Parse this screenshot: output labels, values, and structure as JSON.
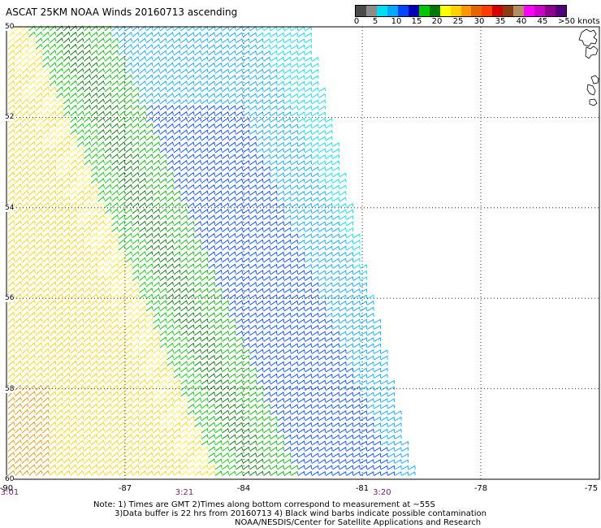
{
  "title": "ASCAT 25KM NOAA Winds 20160713 ascending",
  "colorbar": {
    "colors": [
      "#4a4a4a",
      "#8c8c8c",
      "#00dcf0",
      "#00a8ff",
      "#0046ff",
      "#0000b4",
      "#00c800",
      "#007800",
      "#ffff00",
      "#ffd200",
      "#ff9600",
      "#e66400",
      "#ff3c00",
      "#d20000",
      "#8c3c14",
      "#b48c64",
      "#ff00ff",
      "#c800c8",
      "#8c008c",
      "#500078"
    ],
    "labels": [
      "0",
      "5",
      "10",
      "15",
      "20",
      "25",
      "30",
      "35",
      "40",
      "45",
      ">50 knots"
    ]
  },
  "latitudes": [
    "50",
    "52",
    "54",
    "56",
    "58",
    "60"
  ],
  "longitudes": [
    "-90",
    "-87",
    "-84",
    "-81",
    "-78",
    "-75"
  ],
  "time_labels": [
    {
      "text": "3:01",
      "lon": "-90"
    },
    {
      "text": "3:21",
      "lon": "-85.5"
    },
    {
      "text": "3:20",
      "lon": "-80.5"
    }
  ],
  "notes": [
    "Note: 1) Times are GMT 2)Times along bottom correspond to measurement at ~55S",
    "3)Data buffer is 22 hrs from 20160713 4) Black wind barbs indicate possible contamination",
    "NOAA/NESDIS/Center for Satellite Applications and Research"
  ]
}
